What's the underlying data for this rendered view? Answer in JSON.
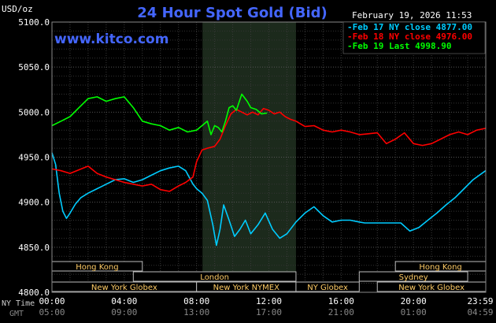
{
  "chart_data": {
    "type": "line",
    "title": "24 Hour Spot Gold (Bid)",
    "ylabel": "USD/oz",
    "timestamp": "February 19, 2026 11:53",
    "source_label": "www.kitco.com",
    "ylim": [
      4800,
      5100
    ],
    "y_ticks": [
      "5100.0",
      "5050.0",
      "5000.0",
      "4950.0",
      "4900.0",
      "4850.0",
      "4800.0"
    ],
    "x_row_labels": [
      "NY Time",
      "GMT"
    ],
    "x_ticks_ny": [
      "00:00",
      "04:00",
      "08:00",
      "12:00",
      "16:00",
      "20:00",
      "23:59"
    ],
    "x_ticks_gmt": [
      "05:00",
      "09:00",
      "13:00",
      "17:00",
      "21:00",
      "01:00",
      "04:59"
    ],
    "grid": true,
    "legend_position": "top-right",
    "legend": [
      {
        "label": "Feb 17 NY close 4877.00",
        "color": "#00CCFF"
      },
      {
        "label": "Feb 18 NY close 4976.00",
        "color": "#FF0000"
      },
      {
        "label": "Feb 19 Last 4998.90",
        "color": "#00FF00"
      }
    ],
    "sessions": [
      {
        "label": "Hong Kong",
        "start": 0,
        "end": 5
      },
      {
        "label": "London",
        "start": 4.5,
        "end": 13.5
      },
      {
        "label": "New York Globex",
        "start": 0,
        "end": 8
      },
      {
        "label": "New York NYMEX",
        "start": 8,
        "end": 13.5
      },
      {
        "label": "NY Globex",
        "start": 13.5,
        "end": 17
      },
      {
        "label": "Hong Kong",
        "start": 19,
        "end": 24
      },
      {
        "label": "Sydney",
        "start": 17,
        "end": 23
      },
      {
        "label": "New York Globex",
        "start": 18,
        "end": 24
      }
    ],
    "series": [
      {
        "name": "Feb 17",
        "color": "#00CCFF",
        "x": [
          0,
          0.2,
          0.4,
          0.6,
          0.8,
          1.0,
          1.3,
          1.6,
          2.0,
          2.5,
          3.0,
          3.5,
          4.0,
          4.5,
          5.0,
          5.5,
          6.0,
          6.5,
          7.0,
          7.4,
          7.8,
          8.0,
          8.3,
          8.6,
          8.9,
          9.1,
          9.3,
          9.5,
          9.8,
          10.1,
          10.4,
          10.7,
          11.0,
          11.4,
          11.8,
          12.2,
          12.6,
          13.0,
          13.5,
          14.0,
          14.5,
          15.0,
          15.5,
          16.0,
          16.5,
          17.0,
          17.3,
          17.8,
          18.3,
          18.8,
          19.3,
          19.8,
          20.3,
          20.8,
          21.3,
          21.8,
          22.3,
          22.8,
          23.3,
          23.99
        ],
        "values": [
          4955,
          4942,
          4910,
          4890,
          4882,
          4888,
          4898,
          4905,
          4910,
          4915,
          4920,
          4925,
          4926,
          4922,
          4925,
          4930,
          4935,
          4938,
          4940,
          4935,
          4920,
          4915,
          4910,
          4902,
          4875,
          4852,
          4870,
          4897,
          4880,
          4862,
          4870,
          4880,
          4865,
          4875,
          4888,
          4870,
          4860,
          4865,
          4878,
          4888,
          4895,
          4885,
          4878,
          4880,
          4880,
          4878,
          4877,
          4877,
          4877,
          4877,
          4877,
          4868,
          4872,
          4880,
          4888,
          4897,
          4905,
          4915,
          4925,
          4935
        ]
      },
      {
        "name": "Feb 18",
        "color": "#FF0000",
        "x": [
          0,
          0.5,
          1.0,
          1.5,
          2.0,
          2.5,
          3.0,
          3.5,
          4.0,
          4.5,
          5.0,
          5.5,
          6.0,
          6.5,
          7.0,
          7.4,
          7.8,
          8.0,
          8.3,
          8.6,
          9.0,
          9.3,
          9.6,
          9.9,
          10.2,
          10.5,
          10.8,
          11.1,
          11.4,
          11.7,
          12.0,
          12.3,
          12.6,
          12.9,
          13.2,
          13.5,
          14.0,
          14.5,
          15.0,
          15.5,
          16.0,
          16.5,
          17.0,
          17.5,
          18.0,
          18.5,
          19.0,
          19.5,
          20.0,
          20.5,
          21.0,
          21.5,
          22.0,
          22.5,
          23.0,
          23.5,
          23.99
        ],
        "values": [
          4937,
          4935,
          4932,
          4936,
          4940,
          4932,
          4928,
          4925,
          4922,
          4920,
          4918,
          4920,
          4914,
          4912,
          4918,
          4922,
          4928,
          4945,
          4958,
          4960,
          4962,
          4970,
          4985,
          4998,
          5003,
          5000,
          4997,
          5000,
          4997,
          5004,
          5002,
          4998,
          5000,
          4995,
          4992,
          4990,
          4984,
          4985,
          4980,
          4978,
          4980,
          4978,
          4975,
          4976,
          4977,
          4965,
          4970,
          4977,
          4965,
          4963,
          4965,
          4970,
          4975,
          4978,
          4975,
          4980,
          4982
        ]
      },
      {
        "name": "Feb 19",
        "color": "#00FF00",
        "x": [
          0,
          0.5,
          1.0,
          1.5,
          2.0,
          2.5,
          3.0,
          3.5,
          4.0,
          4.5,
          5.0,
          5.5,
          6.0,
          6.5,
          7.0,
          7.5,
          8.0,
          8.3,
          8.6,
          8.8,
          9.0,
          9.2,
          9.4,
          9.6,
          9.8,
          10.0,
          10.2,
          10.5,
          10.8,
          11.0,
          11.3,
          11.6,
          11.9
        ],
        "values": [
          4985,
          4990,
          4995,
          5005,
          5015,
          5017,
          5012,
          5015,
          5017,
          5005,
          4990,
          4987,
          4985,
          4980,
          4983,
          4978,
          4980,
          4985,
          4990,
          4975,
          4985,
          4983,
          4978,
          4990,
          5005,
          5007,
          5002,
          5020,
          5012,
          5005,
          5003,
          4998,
          4999
        ]
      }
    ]
  }
}
